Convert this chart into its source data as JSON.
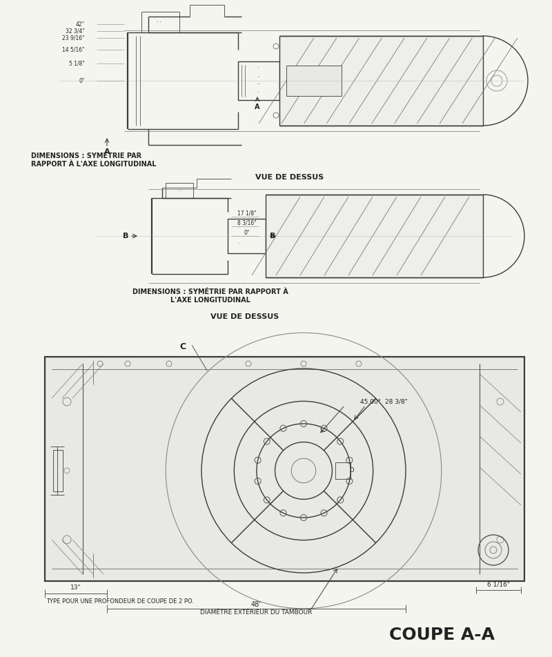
{
  "background": "#f5f5f0",
  "line_color": "#3a3a3a",
  "text_color": "#222222",
  "title1": "VUE DE DESSUS",
  "title2": "VUE DE DESSUS",
  "title3": "COUPE A-A",
  "label1": "DIMENSIONS : SYMÉTRIE PAR\nRAPPORT À L'AXE LONGITUDINAL",
  "label2": "DIMENSIONS : SYMÉTRIE PAR RAPPORT À\nL'AXE LONGITUDINAL",
  "dim_labels_v1": [
    "42\"",
    "32 3/4\"",
    "23 9/16\"",
    "14 5/16\"",
    "5 1/8\"",
    "0\""
  ],
  "dim_labels_v2": [
    "17 1/8\"",
    "8 3/16\"",
    "0\""
  ],
  "angle_label": "45.00°",
  "radius_label": "28 3/8\"",
  "bottom_dim1": "13\"",
  "bottom_text1": "TYPE POUR UNE PROFONDEUR DE COUPE DE 2 PO.",
  "bottom_dim2": "48'",
  "bottom_text2": "DIAMÈTRE EXTÉRIEUR DU TAMBOUR",
  "bottom_dim3": "6 1/16\""
}
